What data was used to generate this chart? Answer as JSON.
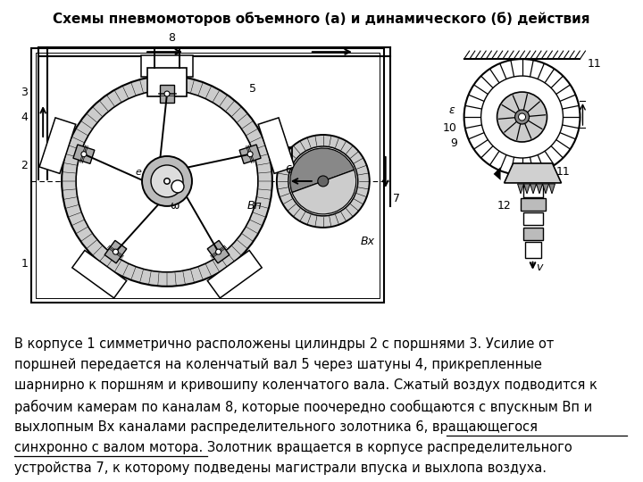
{
  "title": "Схемы пневмомоторов объемного (а) и динамического (б) действия",
  "title_fontsize": 11,
  "title_fontweight": "bold",
  "bg_color": "#ffffff",
  "text_color": "#000000",
  "body_fontsize": 10.5,
  "line1": "В корпусе 1 симметрично расположены цилиндры 2 с поршнями 3. Усилие от",
  "line2": "поршней передается на коленчатый вал 5 через шатуны 4, прикрепленные",
  "line3": "шарнирно к поршням и кривошипу коленчатого вала. Сжатый воздух подводится к",
  "line4a": "рабочим камерам по каналам 8, которые поочередно сообщаются с впускным ",
  "line4b": "Вп",
  "line4c": " и",
  "line5a": "выхлопным ",
  "line5b": "Вх",
  "line5c": " каналами распределительного золотника 6, ",
  "line5d": "вращающегося",
  "line6a": "синхронно с валом мотора",
  "line6b": ". Золотник вращается в корпусе распределительного",
  "line7": "устройства 7, к которому подведены магистрали впуска и выхлопа воздуха."
}
